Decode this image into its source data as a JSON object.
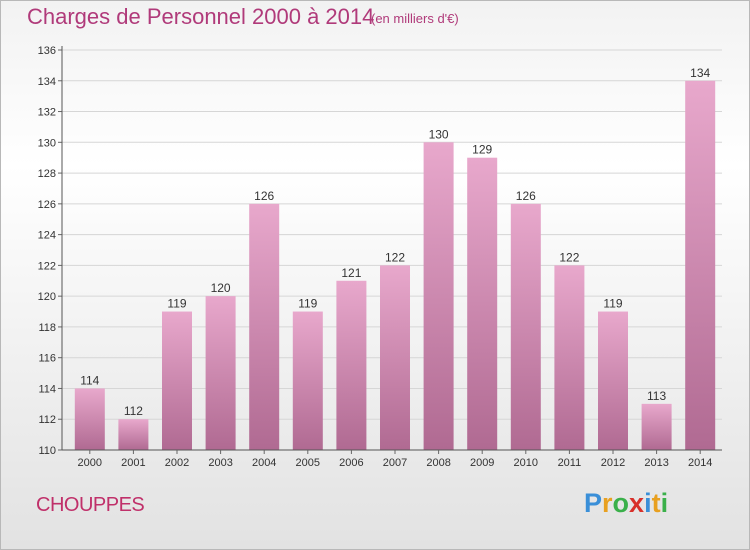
{
  "header": {
    "title": "Charges de Personnel 2000 à 2014",
    "subtitle": "(en milliers d'€)"
  },
  "footer": {
    "commune": "CHOUPPES",
    "logo": "Proxiti"
  },
  "colors": {
    "title": "#b03a7a",
    "bar_top": "#e8a8cc",
    "bar_bottom": "#b06a92"
  },
  "chart_data": {
    "type": "bar",
    "title": "Charges de Personnel 2000 à 2014",
    "subtitle": "(en milliers d'€)",
    "xlabel": "",
    "ylabel": "",
    "categories": [
      "2000",
      "2001",
      "2002",
      "2003",
      "2004",
      "2005",
      "2006",
      "2007",
      "2008",
      "2009",
      "2010",
      "2011",
      "2012",
      "2013",
      "2014"
    ],
    "values": [
      114,
      112,
      119,
      120,
      126,
      119,
      121,
      122,
      130,
      129,
      126,
      122,
      119,
      113,
      134
    ],
    "ylim": [
      110,
      136
    ],
    "yticks": [
      "110",
      "112",
      "114",
      "116",
      "118",
      "120",
      "122",
      "124",
      "126",
      "128",
      "130",
      "132",
      "134",
      "136"
    ],
    "grid": true,
    "legend": "none"
  }
}
